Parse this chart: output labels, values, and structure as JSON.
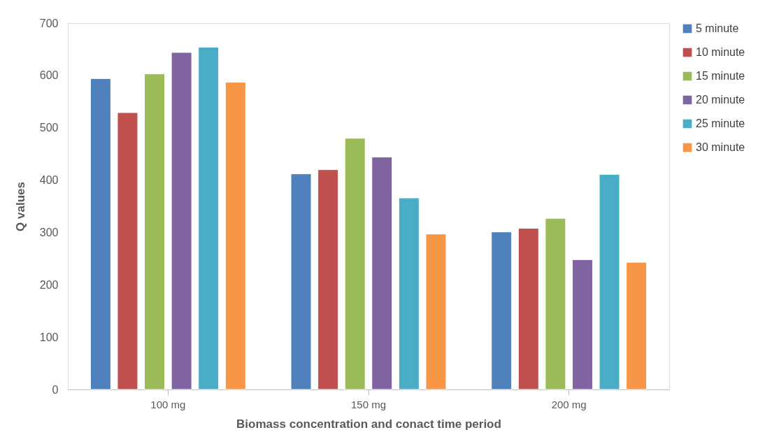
{
  "chart_data": {
    "type": "bar",
    "xlabel": "Biomass concentration and conact time period",
    "ylabel": "Q values",
    "categories": [
      "100 mg",
      "150 mg",
      "200 mg"
    ],
    "series": [
      {
        "name": "5 minute",
        "color": "#4f81bd",
        "values": [
          594,
          412,
          301
        ]
      },
      {
        "name": "10 minute",
        "color": "#c0504d",
        "values": [
          529,
          420,
          308
        ]
      },
      {
        "name": "15 minute",
        "color": "#9bbb59",
        "values": [
          603,
          480,
          327
        ]
      },
      {
        "name": "20 minute",
        "color": "#8064a2",
        "values": [
          644,
          444,
          248
        ]
      },
      {
        "name": "25 minute",
        "color": "#4bacc6",
        "values": [
          654,
          366,
          411
        ]
      },
      {
        "name": "30 minute",
        "color": "#f79646",
        "values": [
          587,
          297,
          243
        ]
      }
    ],
    "ylim": [
      0,
      700
    ],
    "yticks": [
      0,
      100,
      200,
      300,
      400,
      500,
      600,
      700
    ],
    "grid": false,
    "legend": "right"
  }
}
